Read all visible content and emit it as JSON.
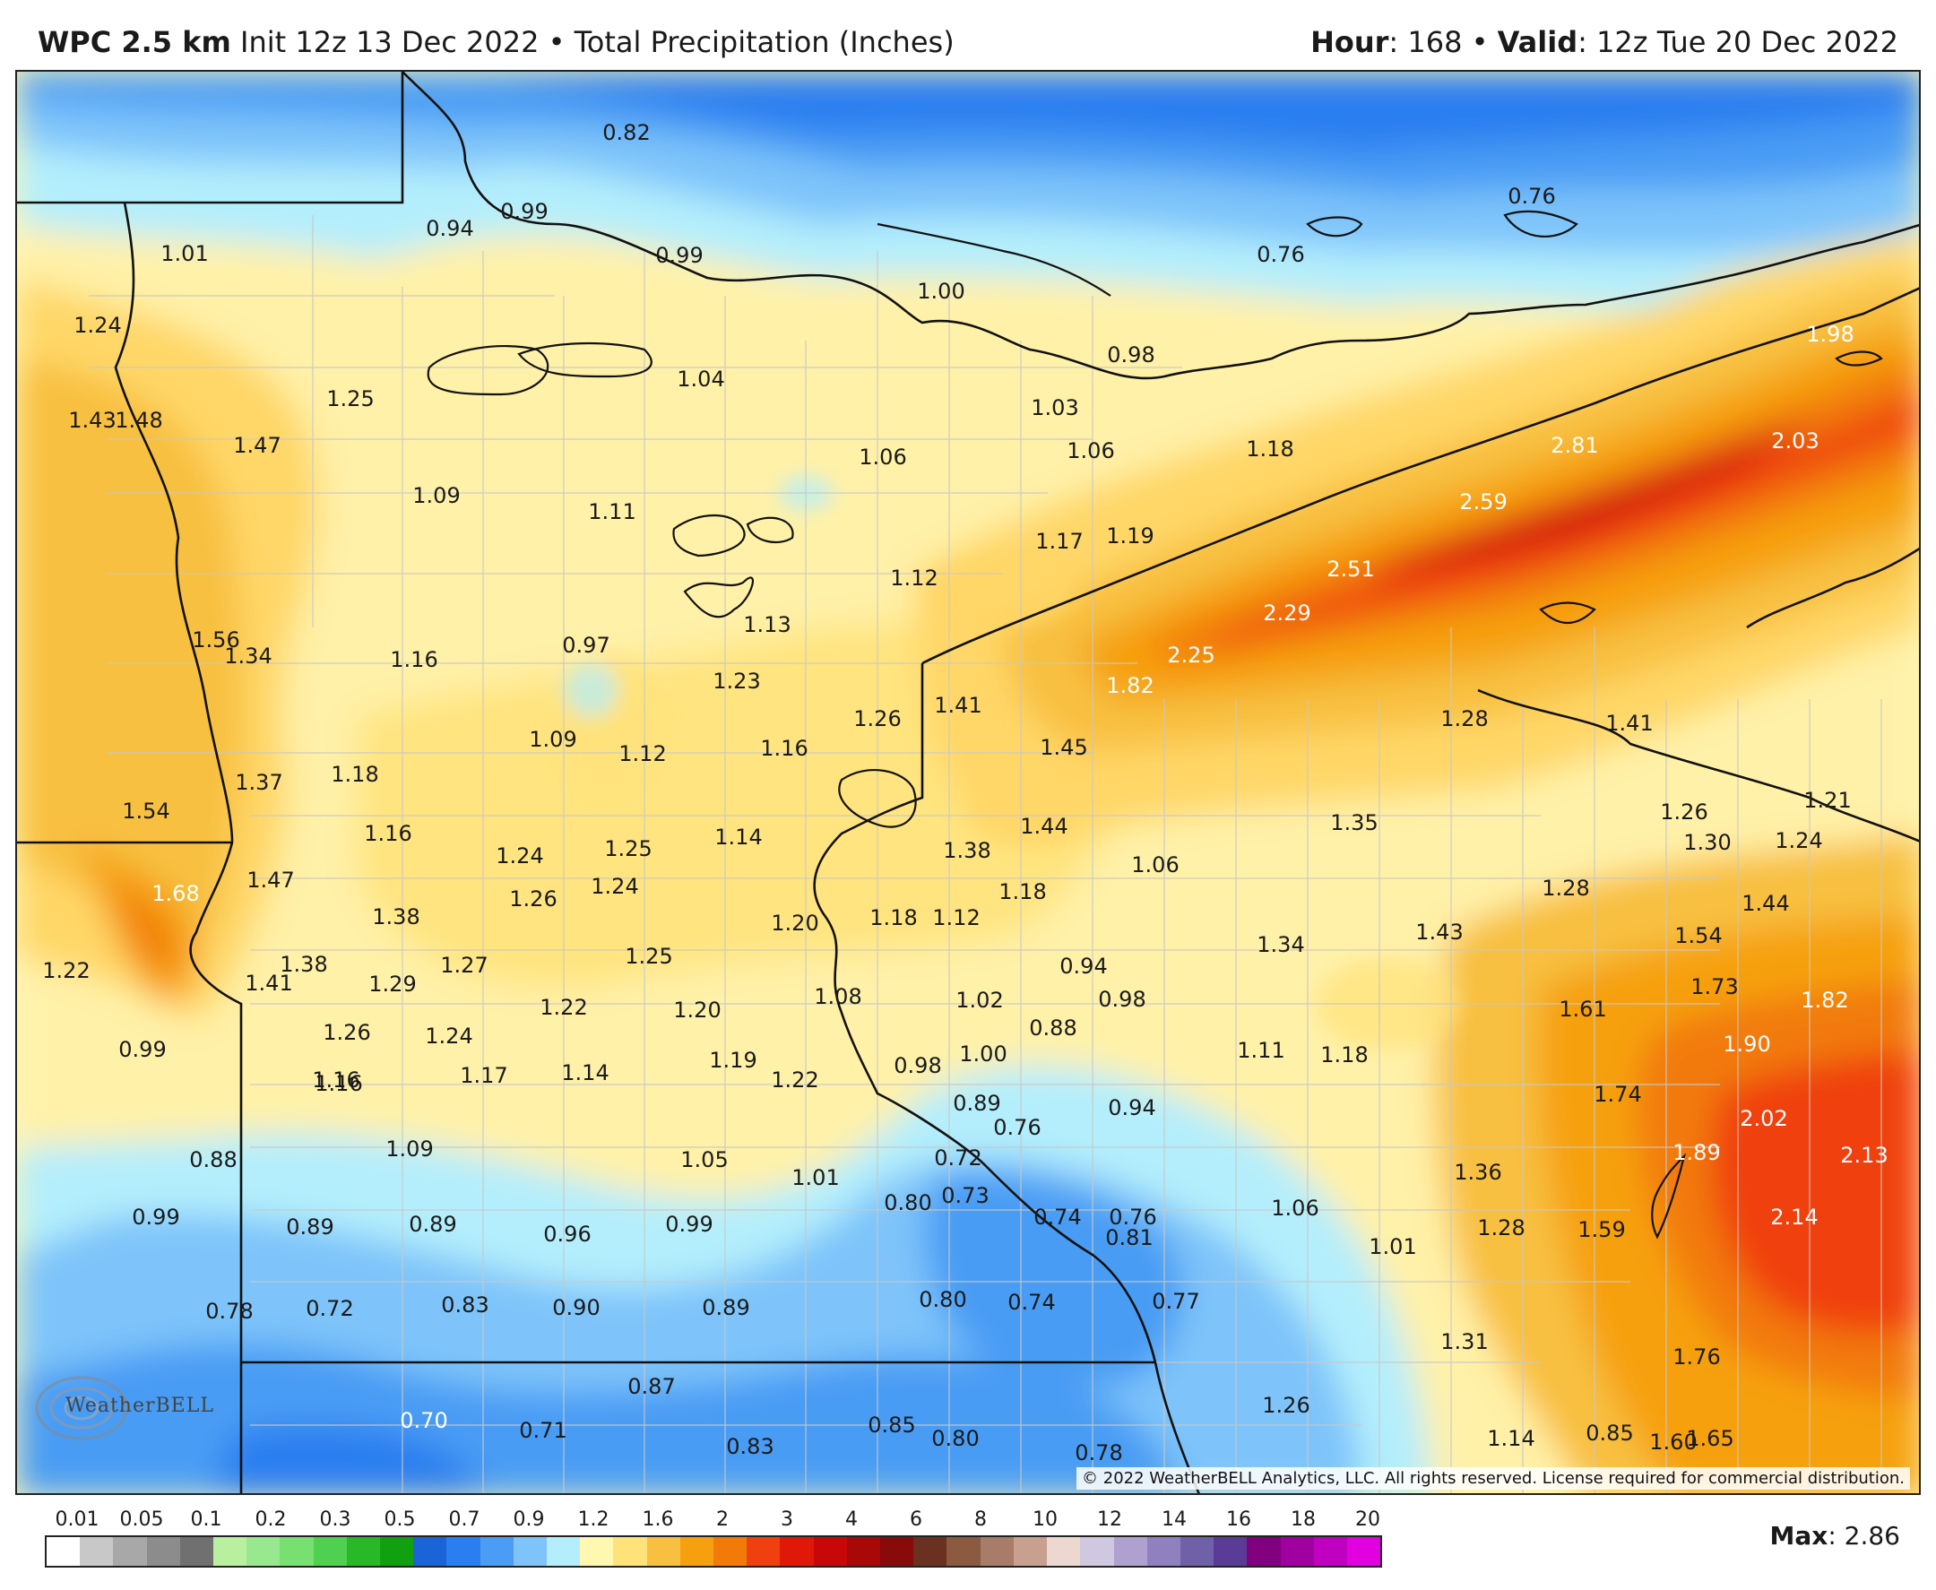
{
  "header": {
    "model_label": "WPC 2.5 km",
    "init_text": "Init 12z 13 Dec 2022",
    "separator": "•",
    "product_text": "Total Precipitation (Inches)",
    "hour_label": "Hour",
    "hour_value": ": 168",
    "valid_label": "Valid",
    "valid_value": ": 12z Tue 20 Dec 2022"
  },
  "map": {
    "copyright": "© 2022 WeatherBELL Analytics, LLC. All rights reserved. License required for commercial distribution.",
    "logo_text": "WeatherBELL",
    "values": [
      {
        "t": "0.82"
      },
      {
        "t": "0.99"
      },
      {
        "t": "0.94"
      },
      {
        "t": "1.01"
      },
      {
        "t": "0.99"
      },
      {
        "t": "1.00"
      },
      {
        "t": "0.76"
      },
      {
        "t": "0.76"
      },
      {
        "t": "0.98"
      },
      {
        "t": "1.98"
      },
      {
        "t": "1.24"
      },
      {
        "t": "1.25"
      },
      {
        "t": "1.04"
      },
      {
        "t": "1.03"
      },
      {
        "t": "1.43"
      },
      {
        "t": "1.48"
      },
      {
        "t": "1.47"
      },
      {
        "t": "1.06"
      },
      {
        "t": "1.06"
      },
      {
        "t": "1.18"
      },
      {
        "t": "2.81"
      },
      {
        "t": "2.03"
      },
      {
        "t": "1.09"
      },
      {
        "t": "1.11"
      },
      {
        "t": "2.59"
      },
      {
        "t": "1.17"
      },
      {
        "t": "1.19"
      },
      {
        "t": "2.51"
      },
      {
        "t": "1.12"
      },
      {
        "t": "1.13"
      },
      {
        "t": "2.29"
      },
      {
        "t": "1.56"
      },
      {
        "t": "1.34"
      },
      {
        "t": "1.16"
      },
      {
        "t": "0.97"
      },
      {
        "t": "2.25"
      },
      {
        "t": "1.23"
      },
      {
        "t": "1.82"
      },
      {
        "t": "1.26"
      },
      {
        "t": "1.41"
      },
      {
        "t": "1.28"
      },
      {
        "t": "1.41"
      },
      {
        "t": "1.09"
      },
      {
        "t": "1.12"
      },
      {
        "t": "1.16"
      },
      {
        "t": "1.45"
      },
      {
        "t": "1.37"
      },
      {
        "t": "1.18"
      },
      {
        "t": "1.54"
      },
      {
        "t": "1.26"
      },
      {
        "t": "1.21"
      },
      {
        "t": "1.35"
      },
      {
        "t": "1.16"
      },
      {
        "t": "1.14"
      },
      {
        "t": "1.44"
      },
      {
        "t": "1.30"
      },
      {
        "t": "1.24"
      },
      {
        "t": "1.24"
      },
      {
        "t": "1.25"
      },
      {
        "t": "1.38"
      },
      {
        "t": "1.47"
      },
      {
        "t": "1.06"
      },
      {
        "t": "1.68"
      },
      {
        "t": "1.26"
      },
      {
        "t": "1.24"
      },
      {
        "t": "1.18"
      },
      {
        "t": "1.28"
      },
      {
        "t": "1.44"
      },
      {
        "t": "1.38"
      },
      {
        "t": "1.20"
      },
      {
        "t": "1.18"
      },
      {
        "t": "1.12"
      },
      {
        "t": "1.54"
      },
      {
        "t": "1.43"
      },
      {
        "t": "1.34"
      },
      {
        "t": "1.22"
      },
      {
        "t": "1.38"
      },
      {
        "t": "1.27"
      },
      {
        "t": "1.25"
      },
      {
        "t": "0.94"
      },
      {
        "t": "1.41"
      },
      {
        "t": "1.29"
      },
      {
        "t": "1.73"
      },
      {
        "t": "1.82"
      },
      {
        "t": "1.08"
      },
      {
        "t": "1.02"
      },
      {
        "t": "0.98"
      },
      {
        "t": "1.22"
      },
      {
        "t": "1.20"
      },
      {
        "t": "1.61"
      },
      {
        "t": "1.26"
      },
      {
        "t": "1.24"
      },
      {
        "t": "0.88"
      },
      {
        "t": "1.90"
      },
      {
        "t": "0.99"
      },
      {
        "t": "1.19"
      },
      {
        "t": "1.00"
      },
      {
        "t": "1.11"
      },
      {
        "t": "1.18"
      },
      {
        "t": "1.16"
      },
      {
        "t": "1.17"
      },
      {
        "t": "1.14"
      },
      {
        "t": "1.22"
      },
      {
        "t": "0.98"
      },
      {
        "t": "0.89"
      },
      {
        "t": "0.94"
      },
      {
        "t": "1.74"
      },
      {
        "t": "1.16"
      },
      {
        "t": "0.76"
      },
      {
        "t": "2.02"
      },
      {
        "t": "1.09"
      },
      {
        "t": "0.88"
      },
      {
        "t": "1.05"
      },
      {
        "t": "0.72"
      },
      {
        "t": "1.89"
      },
      {
        "t": "2.13"
      },
      {
        "t": "1.01"
      },
      {
        "t": "1.36"
      },
      {
        "t": "0.73"
      },
      {
        "t": "0.80"
      },
      {
        "t": "1.06"
      },
      {
        "t": "2.14"
      },
      {
        "t": "0.99"
      },
      {
        "t": "0.89"
      },
      {
        "t": "0.89"
      },
      {
        "t": "0.74"
      },
      {
        "t": "0.76"
      },
      {
        "t": "0.96"
      },
      {
        "t": "0.99"
      },
      {
        "t": "0.81"
      },
      {
        "t": "1.01"
      },
      {
        "t": "1.28"
      },
      {
        "t": "1.59"
      },
      {
        "t": "0.78"
      },
      {
        "t": "0.72"
      },
      {
        "t": "0.83"
      },
      {
        "t": "0.90"
      },
      {
        "t": "0.89"
      },
      {
        "t": "0.80"
      },
      {
        "t": "0.74"
      },
      {
        "t": "0.77"
      },
      {
        "t": "1.31"
      },
      {
        "t": "1.76"
      },
      {
        "t": "0.87"
      },
      {
        "t": "0.70"
      },
      {
        "t": "0.71"
      },
      {
        "t": "0.83"
      },
      {
        "t": "0.85"
      },
      {
        "t": "0.80"
      },
      {
        "t": "1.26"
      },
      {
        "t": "0.85"
      },
      {
        "t": "0.78"
      },
      {
        "t": "1.14"
      },
      {
        "t": "1.60"
      },
      {
        "t": "1.65"
      }
    ]
  },
  "legend": {
    "labels": [
      "0.01",
      "0.05",
      "0.1",
      "0.2",
      "0.3",
      "0.5",
      "0.7",
      "0.9",
      "1.2",
      "1.6",
      "2",
      "3",
      "4",
      "6",
      "8",
      "10",
      "12",
      "14",
      "16",
      "18",
      "20"
    ],
    "colors": [
      "#ffffff",
      "#c8c8c8",
      "#a8a8a8",
      "#8c8c8c",
      "#707070",
      "#b8f0a0",
      "#98e890",
      "#78e070",
      "#50d050",
      "#28b828",
      "#10a010",
      "#1a64d8",
      "#2b7ef0",
      "#4a9cf4",
      "#7ec4fa",
      "#b4eefc",
      "#fff8b0",
      "#ffe27a",
      "#f8c040",
      "#f6a010",
      "#f27a08",
      "#f04010",
      "#e01808",
      "#c80808",
      "#a80808",
      "#880a0a",
      "#6a3020",
      "#8c5a40",
      "#a87c68",
      "#c8a090",
      "#ecd8d0",
      "#d0c8e0",
      "#b0a0d0",
      "#9080c0",
      "#7060a8",
      "#5a3c98",
      "#800080",
      "#a000a0",
      "#c000c0",
      "#e000e0"
    ],
    "max_label": "Max",
    "max_value": ": 2.86"
  }
}
